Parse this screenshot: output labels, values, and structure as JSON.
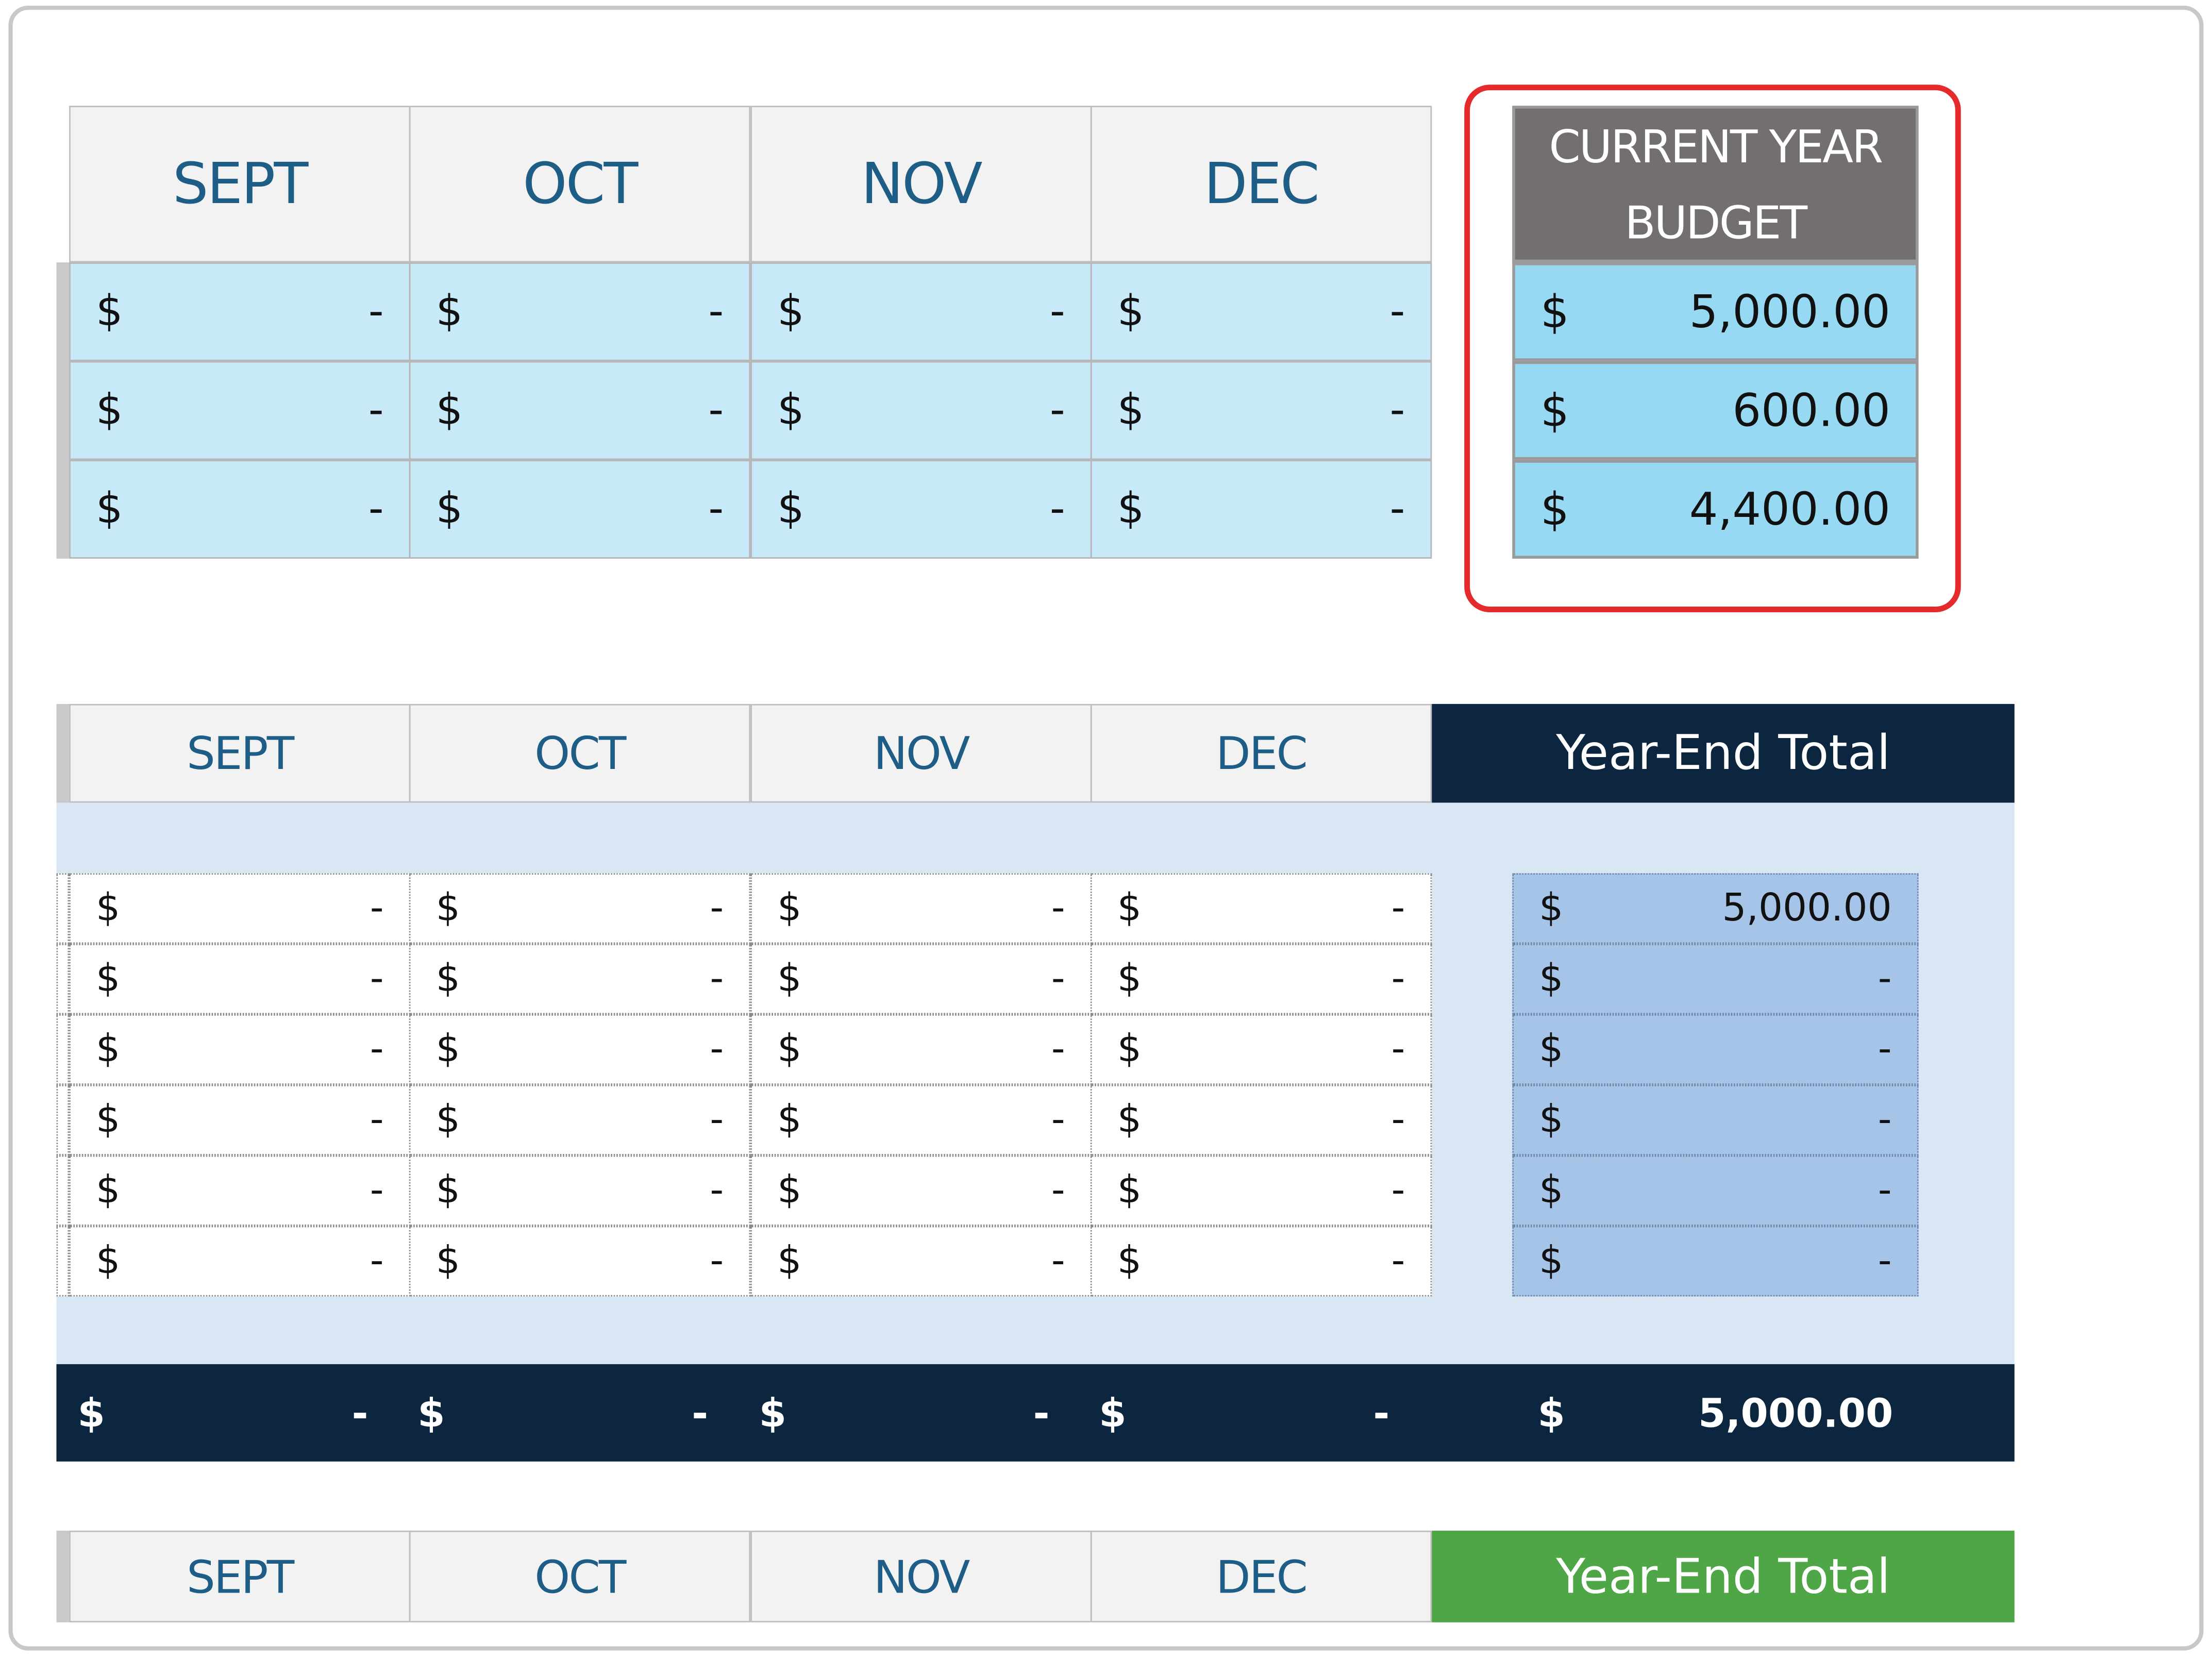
{
  "months": [
    "SEPT",
    "OCT",
    "NOV",
    "DEC"
  ],
  "colors": {
    "header_gray": "#f2f2f2",
    "header_text": "#1d5d86",
    "row_blue": "#c8e9f8",
    "budget_header": "#736f6e",
    "budget_cell": "#97d9f2",
    "highlight_red": "#e42a2a",
    "navy": "#0c2640",
    "band": "#d9e7f5",
    "yearend_cell": "#a5c4e8",
    "green": "#4ea646"
  },
  "top_table": {
    "rows": [
      [
        "-",
        "-",
        "-",
        "-"
      ],
      [
        "-",
        "-",
        "-",
        "-"
      ],
      [
        "-",
        "-",
        "-",
        "-"
      ]
    ]
  },
  "budget": {
    "title_line1": "CURRENT YEAR",
    "title_line2": "BUDGET",
    "currency": "$",
    "values": [
      "5,000.00",
      "600.00",
      "4,400.00"
    ]
  },
  "middle_table": {
    "year_end_label": "Year-End Total",
    "rows": [
      [
        "-",
        "-",
        "-",
        "-"
      ],
      [
        "-",
        "-",
        "-",
        "-"
      ],
      [
        "-",
        "-",
        "-",
        "-"
      ],
      [
        "-",
        "-",
        "-",
        "-"
      ],
      [
        "-",
        "-",
        "-",
        "-"
      ],
      [
        "-",
        "-",
        "-",
        "-"
      ]
    ],
    "year_end_values": [
      "5,000.00",
      "-",
      "-",
      "-",
      "-",
      "-"
    ],
    "totals": [
      "-",
      "-",
      "-",
      "-"
    ],
    "year_end_total": "5,000.00"
  },
  "bottom_table": {
    "year_end_label": "Year-End Total"
  },
  "currency": "$"
}
